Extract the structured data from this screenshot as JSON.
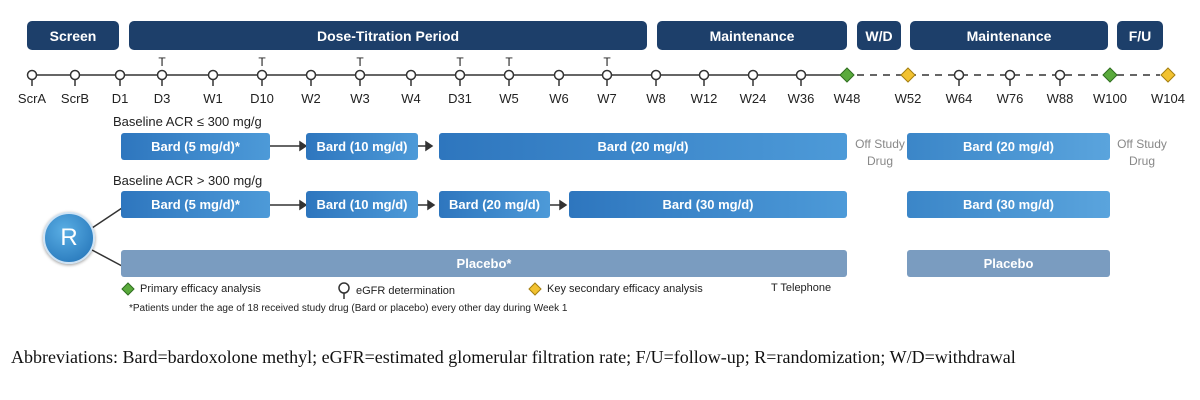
{
  "periods": {
    "screen": "Screen",
    "titration": "Dose-Titration Period",
    "maintenance1": "Maintenance",
    "wd": "W/D",
    "maintenance2": "Maintenance",
    "fu": "F/U"
  },
  "timepoints": [
    "ScrA",
    "ScrB",
    "D1",
    "D3",
    "W1",
    "D10",
    "W2",
    "W3",
    "W4",
    "D31",
    "W5",
    "W6",
    "W7",
    "W8",
    "W12",
    "W24",
    "W36",
    "W48",
    "W52",
    "W64",
    "W76",
    "W88",
    "W100",
    "W104"
  ],
  "telephone_marker": "T",
  "arms": {
    "low": {
      "label": "Baseline ACR ≤ 300 mg/g",
      "b1": "Bard (5 mg/d)*",
      "b2": "Bard (10 mg/d)",
      "b3": "Bard (20 mg/d)",
      "b4": "Bard (20 mg/d)"
    },
    "high": {
      "label": "Baseline ACR > 300 mg/g",
      "b1": "Bard (5 mg/d)*",
      "b2": "Bard (10 mg/d)",
      "b3": "Bard (20 mg/d)",
      "b4": "Bard (30 mg/d)",
      "b5": "Bard (30 mg/d)"
    },
    "placebo": {
      "b1": "Placebo*",
      "b2": "Placebo"
    }
  },
  "off_study_1": "Off Study Drug",
  "off_study_2": "Off Study Drug",
  "randomization": "R",
  "legend": {
    "primary": "Primary efficacy analysis",
    "egfr": "eGFR determination",
    "secondary": "Key secondary efficacy analysis",
    "telephone": "T Telephone"
  },
  "footnote": "*Patients under the age of 18 received study drug (Bard or placebo) every other day during Week 1",
  "abbreviations": "Abbreviations: Bard=bardoxolone methyl; eGFR=estimated glomerular filtration rate; F/U=follow-up; R=randomization; W/D=withdrawal",
  "colors": {
    "header": "#1d3f6a",
    "bar": "#3b86c8",
    "placebo": "#7a9cc0",
    "primary_diamond": "#5aaa3c",
    "secondary_diamond": "#f2c230"
  }
}
